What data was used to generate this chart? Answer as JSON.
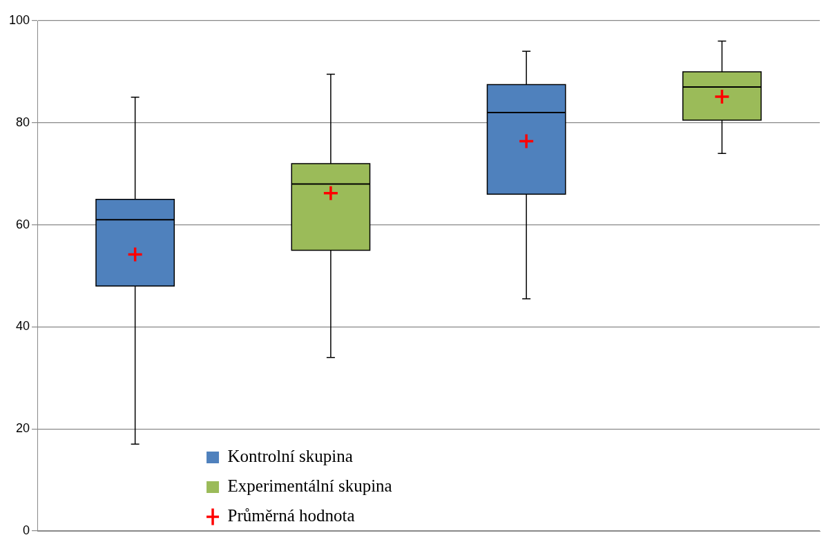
{
  "chart_data": {
    "type": "box",
    "categories": [
      null,
      null,
      null,
      null
    ],
    "series": [
      {
        "name": "Kontrolní skupina",
        "color": "#4f81bd",
        "boxes": [
          {
            "low": 17,
            "q1": 48,
            "median": 61,
            "q3": 65,
            "high": 85
          },
          null,
          {
            "low": 45.5,
            "q1": 66,
            "median": 82,
            "q3": 87.5,
            "high": 94
          },
          null
        ]
      },
      {
        "name": "Experimentální skupina",
        "color": "#9bbb59",
        "boxes": [
          null,
          {
            "low": 34,
            "q1": 55,
            "median": 68,
            "q3": 72,
            "high": 89.5
          },
          null,
          {
            "low": 74,
            "q1": 80.5,
            "median": 87,
            "q3": 90,
            "high": 96
          }
        ]
      },
      {
        "name": "Průměrná hodnota",
        "type": "scatter",
        "color": "#ff0000",
        "values": [
          54.2,
          66.2,
          76.4,
          85.1
        ]
      }
    ],
    "ylim": [
      0,
      100
    ],
    "yticks": [
      0,
      20,
      40,
      60,
      80,
      100
    ],
    "grid": "y",
    "legend": "bottom",
    "tick_labels": "y",
    "marker": "cross"
  }
}
